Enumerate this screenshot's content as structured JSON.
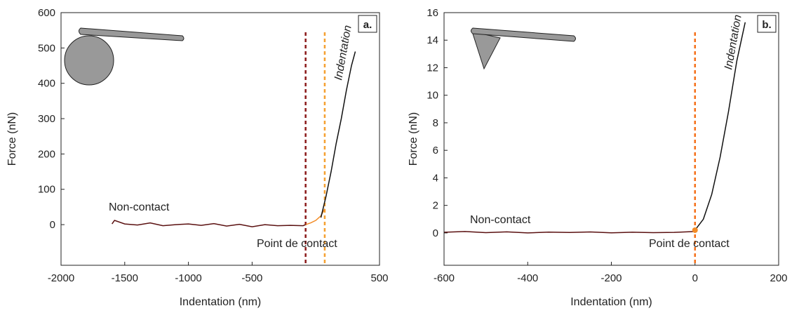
{
  "chart_data": [
    {
      "type": "line",
      "panel_label": "a.",
      "xlabel": "Indentation (nm)",
      "ylabel": "Force (nN)",
      "xlim": [
        -2000,
        500
      ],
      "xticks": [
        -2000,
        -1500,
        -1000,
        -500,
        500
      ],
      "ylim": [
        -115,
        600
      ],
      "yticks": [
        0,
        100,
        200,
        300,
        400,
        500,
        600
      ],
      "series": [
        {
          "color": "#5a1010",
          "x": [
            -1600,
            -1580,
            -1500,
            -1400,
            -1300,
            -1200,
            -1100,
            -1000,
            -900,
            -800,
            -700,
            -600,
            -500,
            -400,
            -300,
            -200,
            -100,
            -80
          ],
          "values": [
            2,
            12,
            2,
            -1,
            5,
            -3,
            0,
            2,
            -2,
            3,
            -4,
            1,
            -6,
            0,
            -3,
            -2,
            -3,
            0
          ]
        },
        {
          "color": "#f28c28",
          "x": [
            -80,
            -40,
            0,
            40,
            70
          ],
          "values": [
            0,
            5,
            12,
            25,
            45
          ]
        },
        {
          "color": "#111111",
          "x": [
            40,
            80,
            120,
            160,
            200,
            240,
            280,
            310
          ],
          "values": [
            20,
            80,
            150,
            230,
            300,
            380,
            450,
            490
          ]
        }
      ],
      "vlines": [
        {
          "x": -80,
          "color": "#8b1a1a"
        },
        {
          "x": 70,
          "color": "#f5a030"
        }
      ],
      "annotations": [
        {
          "text": "Non-contact",
          "color": "#5a1010"
        },
        {
          "text": "Point de contact",
          "color": "#f28c28"
        },
        {
          "text": "Indentation",
          "color": "#111111"
        }
      ]
    },
    {
      "type": "line",
      "panel_label": "b.",
      "xlabel": "Indentation (nm)",
      "ylabel": "Force (nN)",
      "xlim": [
        -600,
        200
      ],
      "xticks": [
        -600,
        -400,
        -200,
        0,
        200
      ],
      "ylim": [
        -2.35,
        16
      ],
      "yticks": [
        0,
        2,
        4,
        6,
        8,
        10,
        12,
        14,
        16
      ],
      "series": [
        {
          "color": "#5a1010",
          "x": [
            -600,
            -550,
            -500,
            -450,
            -400,
            -350,
            -300,
            -250,
            -200,
            -150,
            -100,
            -50,
            0
          ],
          "values": [
            0.05,
            0.1,
            0.02,
            0.08,
            0.0,
            0.06,
            0.03,
            0.07,
            0.01,
            0.05,
            0.02,
            0.04,
            0.1
          ]
        },
        {
          "color": "#111111",
          "x": [
            0,
            20,
            40,
            60,
            80,
            100,
            120
          ],
          "values": [
            0.2,
            1,
            2.8,
            5.5,
            8.8,
            12.5,
            15.3
          ]
        },
        {
          "color": "#f28c28",
          "x": [
            0
          ],
          "values": [
            0.2
          ],
          "markers": true
        }
      ],
      "vlines": [
        {
          "x": 0,
          "color": "#8b1a1a"
        },
        {
          "x": 0,
          "color": "#f5701a"
        }
      ],
      "annotations": [
        {
          "text": "Non-contact",
          "color": "#5a1010"
        },
        {
          "text": "Point de contact",
          "color": "#f28c28"
        },
        {
          "text": "Indentation",
          "color": "#111111"
        }
      ]
    }
  ]
}
